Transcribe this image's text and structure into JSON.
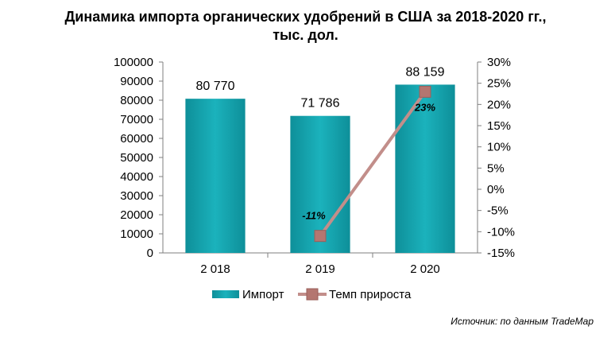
{
  "title": {
    "line1": "Динамика импорта органических удобрений в США за 2018-2020 гг.,",
    "line2": "тыс. дол."
  },
  "source": "Источник: по данным TradeMap",
  "chart_data": {
    "type": "bar",
    "categories": [
      "2 018",
      "2 019",
      "2 020"
    ],
    "series": [
      {
        "name": "Импорт",
        "type": "bar",
        "axis": "left",
        "values": [
          80770,
          71786,
          88159
        ],
        "labels": [
          "80 770",
          "71 786",
          "88 159"
        ],
        "color": "#14A3AE"
      },
      {
        "name": "Темп прироста",
        "type": "line",
        "axis": "right",
        "values": [
          null,
          -11,
          23
        ],
        "labels": [
          "",
          "-11%",
          "23%"
        ],
        "color": "#C28E8A"
      }
    ],
    "y_left": {
      "range": [
        0,
        100000
      ],
      "ticks": [
        "0",
        "10000",
        "20000",
        "30000",
        "40000",
        "50000",
        "60000",
        "70000",
        "80000",
        "90000",
        "100000"
      ]
    },
    "y_right": {
      "range": [
        -15,
        30
      ],
      "ticks": [
        "-15%",
        "-10%",
        "-5%",
        "0%",
        "5%",
        "10%",
        "15%",
        "20%",
        "25%",
        "30%"
      ]
    },
    "grid": false,
    "legend": "bottom"
  }
}
